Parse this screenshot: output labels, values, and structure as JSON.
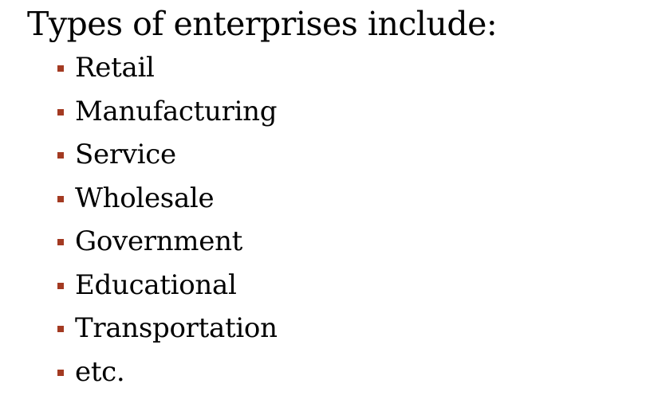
{
  "slide": {
    "heading": "Types of enterprises include:",
    "bullet_color": "#a33a22",
    "items": [
      {
        "label": "Retail"
      },
      {
        "label": "Manufacturing"
      },
      {
        "label": "Service"
      },
      {
        "label": "Wholesale"
      },
      {
        "label": "Government"
      },
      {
        "label": "Educational"
      },
      {
        "label": "Transportation"
      },
      {
        "label": "etc."
      }
    ]
  }
}
